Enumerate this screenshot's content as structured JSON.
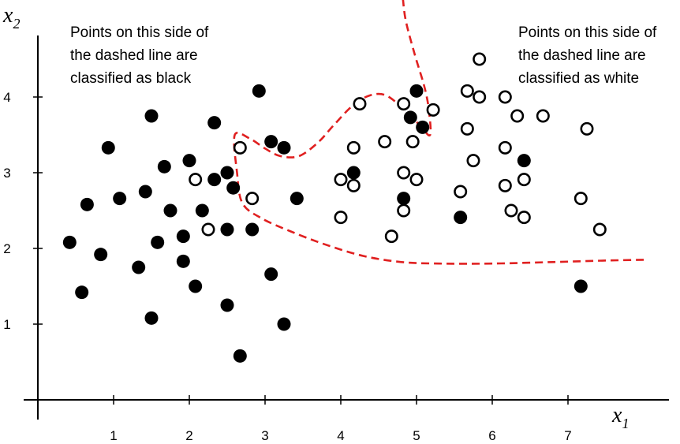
{
  "chart_data": {
    "type": "scatter",
    "xlabel": "x",
    "xlabel_sub": "1",
    "ylabel": "x",
    "ylabel_sub": "2",
    "xlim": [
      -0.1,
      7.6
    ],
    "ylim": [
      0,
      5.2
    ],
    "xticks": [
      1,
      2,
      3,
      4,
      5,
      6,
      7
    ],
    "yticks": [
      1,
      2,
      3,
      4
    ],
    "grid": false,
    "legend": "none",
    "annotations": [
      {
        "id": "black-side",
        "text": "Points on this side of\nthe dashed line are\nclassified as black"
      },
      {
        "id": "white-side",
        "text": "Points on this side of\nthe dashed line are\nclassified as white"
      }
    ],
    "series": [
      {
        "id": "black-points",
        "marker": "filled-circle",
        "color": "#000000",
        "points": [
          [
            0.42,
            2.08
          ],
          [
            0.58,
            1.42
          ],
          [
            0.65,
            2.58
          ],
          [
            0.83,
            1.92
          ],
          [
            0.93,
            3.33
          ],
          [
            1.08,
            2.66
          ],
          [
            1.33,
            1.75
          ],
          [
            1.42,
            2.75
          ],
          [
            1.5,
            3.75
          ],
          [
            1.5,
            1.08
          ],
          [
            1.58,
            2.08
          ],
          [
            1.67,
            3.08
          ],
          [
            1.75,
            2.5
          ],
          [
            1.92,
            2.16
          ],
          [
            1.92,
            1.83
          ],
          [
            2.0,
            3.16
          ],
          [
            2.08,
            1.5
          ],
          [
            2.17,
            2.5
          ],
          [
            2.33,
            3.66
          ],
          [
            2.33,
            2.91
          ],
          [
            2.5,
            3.0
          ],
          [
            2.5,
            2.25
          ],
          [
            2.5,
            1.25
          ],
          [
            2.58,
            2.8
          ],
          [
            2.67,
            0.58
          ],
          [
            2.83,
            2.25
          ],
          [
            2.92,
            4.08
          ],
          [
            3.08,
            3.41
          ],
          [
            3.08,
            1.66
          ],
          [
            3.25,
            3.33
          ],
          [
            3.25,
            1.0
          ],
          [
            3.42,
            2.66
          ],
          [
            4.17,
            3.0
          ],
          [
            4.83,
            2.66
          ],
          [
            4.92,
            3.73
          ],
          [
            5.0,
            4.08
          ],
          [
            5.08,
            3.6
          ],
          [
            5.58,
            2.41
          ],
          [
            6.42,
            3.16
          ],
          [
            7.17,
            1.5
          ]
        ]
      },
      {
        "id": "white-points",
        "marker": "open-circle",
        "color": "#000000",
        "points": [
          [
            2.08,
            2.91
          ],
          [
            2.25,
            2.25
          ],
          [
            2.67,
            3.33
          ],
          [
            2.83,
            2.66
          ],
          [
            4.0,
            2.91
          ],
          [
            4.0,
            2.41
          ],
          [
            4.17,
            3.33
          ],
          [
            4.17,
            2.83
          ],
          [
            4.25,
            3.91
          ],
          [
            4.58,
            3.41
          ],
          [
            4.67,
            2.16
          ],
          [
            4.83,
            3.91
          ],
          [
            4.83,
            3.0
          ],
          [
            4.83,
            2.5
          ],
          [
            4.95,
            3.41
          ],
          [
            5.0,
            2.91
          ],
          [
            5.22,
            3.83
          ],
          [
            5.58,
            2.75
          ],
          [
            5.67,
            4.08
          ],
          [
            5.67,
            3.58
          ],
          [
            5.75,
            3.16
          ],
          [
            5.83,
            4.5
          ],
          [
            5.83,
            4.0
          ],
          [
            6.17,
            4.0
          ],
          [
            6.17,
            3.33
          ],
          [
            6.17,
            2.83
          ],
          [
            6.25,
            2.5
          ],
          [
            6.33,
            3.75
          ],
          [
            6.42,
            2.91
          ],
          [
            6.42,
            2.41
          ],
          [
            6.67,
            3.75
          ],
          [
            7.17,
            2.66
          ],
          [
            7.25,
            3.58
          ],
          [
            7.42,
            2.25
          ]
        ]
      }
    ],
    "decision_boundary": {
      "id": "decision-boundary",
      "style": "dashed",
      "color": "#e02020",
      "points": [
        [
          4.82,
          5.3
        ],
        [
          4.86,
          5.0
        ],
        [
          4.98,
          4.55
        ],
        [
          5.1,
          4.15
        ],
        [
          5.16,
          3.85
        ],
        [
          5.18,
          3.5
        ],
        [
          5.05,
          3.62
        ],
        [
          4.85,
          3.82
        ],
        [
          4.6,
          4.02
        ],
        [
          4.38,
          4.02
        ],
        [
          4.15,
          3.88
        ],
        [
          3.9,
          3.62
        ],
        [
          3.7,
          3.4
        ],
        [
          3.45,
          3.22
        ],
        [
          3.2,
          3.22
        ],
        [
          3.0,
          3.32
        ],
        [
          2.8,
          3.45
        ],
        [
          2.6,
          3.5
        ],
        [
          2.63,
          3.0
        ],
        [
          2.7,
          2.6
        ],
        [
          2.95,
          2.4
        ],
        [
          3.35,
          2.22
        ],
        [
          3.8,
          2.05
        ],
        [
          4.3,
          1.9
        ],
        [
          4.8,
          1.82
        ],
        [
          5.3,
          1.8
        ],
        [
          6.0,
          1.8
        ],
        [
          6.8,
          1.82
        ],
        [
          7.5,
          1.84
        ],
        [
          8.0,
          1.85
        ]
      ]
    }
  }
}
